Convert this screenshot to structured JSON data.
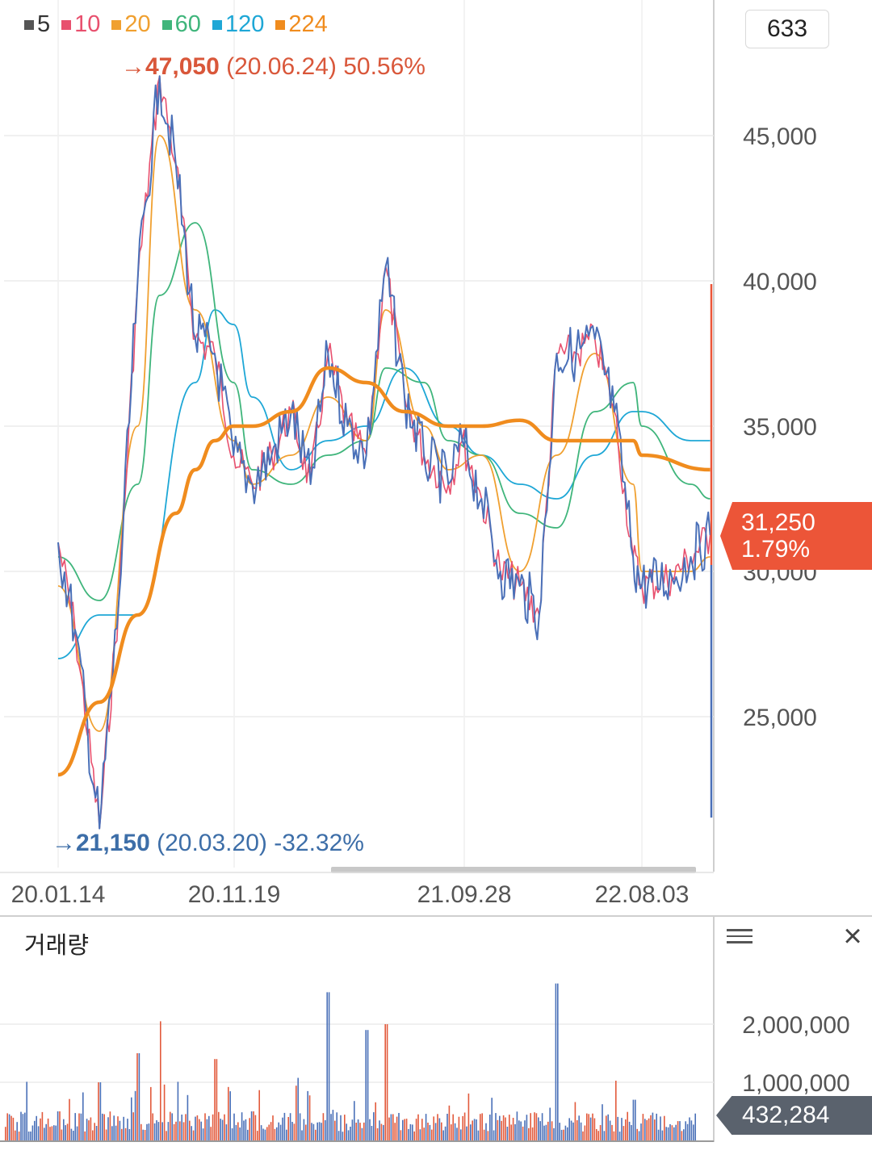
{
  "legend": [
    {
      "label": "5",
      "color": "#555555"
    },
    {
      "label": "10",
      "color": "#e8506e"
    },
    {
      "label": "20",
      "color": "#f0a030"
    },
    {
      "label": "60",
      "color": "#3fb57b"
    },
    {
      "label": "120",
      "color": "#1ea7d6"
    },
    {
      "label": "224",
      "color": "#f08c1e"
    }
  ],
  "count_box": "633",
  "high_marker": {
    "arrow": "→",
    "value": "47,050",
    "date": "(20.06.24)",
    "change": "50.56%"
  },
  "low_marker": {
    "arrow": "→",
    "value": "21,150",
    "date": "(20.03.20)",
    "change": "-32.32%"
  },
  "current_price": {
    "value": "31,250",
    "change": "1.79%",
    "color": "#ec5538"
  },
  "volume_panel": {
    "title": "거래량",
    "current": "432,284"
  },
  "chart_data": [
    {
      "type": "line",
      "title": "",
      "x_ticks": [
        "20.01.14",
        "20.11.19",
        "21.09.28",
        "22.08.03"
      ],
      "y_ticks": [
        25000,
        30000,
        35000,
        40000,
        45000
      ],
      "ylim": [
        19300,
        48000
      ],
      "grid": true,
      "series": [
        {
          "name": "price",
          "color": "#4a70b8",
          "x": [
            "20.01.14",
            "20.02.10",
            "20.03.20",
            "20.04.20",
            "20.05.20",
            "20.06.24",
            "20.07.20",
            "20.08.20",
            "20.09.20",
            "20.10.20",
            "20.11.19",
            "20.12.20",
            "21.01.20",
            "21.02.20",
            "21.03.20",
            "21.04.20",
            "21.05.20",
            "21.06.20",
            "21.07.20",
            "21.08.20",
            "21.09.28",
            "21.10.20",
            "21.11.20",
            "21.12.20",
            "22.01.20",
            "22.02.20",
            "22.03.20",
            "22.04.20",
            "22.05.20",
            "22.06.20",
            "22.07.20",
            "22.08.03",
            "22.09.20",
            "22.10.20",
            "22.11.20"
          ],
          "y": [
            31000,
            28000,
            21150,
            29000,
            40000,
            47050,
            44000,
            38000,
            37500,
            34000,
            33000,
            34000,
            35500,
            33000,
            37500,
            35000,
            34000,
            40500,
            36000,
            34000,
            33000,
            34500,
            32500,
            30000,
            29500,
            28500,
            37500,
            37500,
            38000,
            35500,
            30500,
            29500,
            29800,
            30500,
            31250
          ]
        },
        {
          "name": "5",
          "color": "#555555",
          "x": [],
          "y": []
        },
        {
          "name": "10",
          "color": "#e8506e",
          "x": [],
          "y": []
        },
        {
          "name": "20",
          "color": "#f0a030",
          "x": [
            "20.01.14",
            "20.03.20",
            "20.05.20",
            "20.06.24",
            "20.08.20",
            "20.10.20",
            "20.11.19",
            "21.01.20",
            "21.03.20",
            "21.05.20",
            "21.06.20",
            "21.08.20",
            "21.09.28",
            "21.11.20",
            "22.01.20",
            "22.03.20",
            "22.05.20",
            "22.07.20",
            "22.08.03",
            "22.10.20",
            "22.11.20"
          ],
          "y": [
            29500,
            24500,
            35000,
            45000,
            39000,
            34500,
            33000,
            34000,
            36000,
            34500,
            39000,
            35000,
            33500,
            34000,
            30000,
            34000,
            37500,
            33000,
            30000,
            30000,
            30500
          ]
        },
        {
          "name": "60",
          "color": "#3fb57b",
          "x": [
            "20.01.14",
            "20.03.20",
            "20.05.20",
            "20.06.24",
            "20.08.20",
            "20.10.20",
            "20.11.19",
            "21.01.20",
            "21.03.20",
            "21.05.20",
            "21.06.20",
            "21.08.20",
            "21.09.28",
            "21.11.20",
            "22.01.20",
            "22.03.20",
            "22.05.20",
            "22.07.20",
            "22.08.03",
            "22.10.20",
            "22.11.20"
          ],
          "y": [
            30500,
            29000,
            33000,
            39500,
            42000,
            36500,
            33500,
            33000,
            34000,
            34500,
            37000,
            36500,
            34500,
            34000,
            32000,
            31500,
            35500,
            36500,
            35000,
            33000,
            32500
          ]
        },
        {
          "name": "120",
          "color": "#1ea7d6",
          "x": [
            "20.01.14",
            "20.03.20",
            "20.05.20",
            "20.08.20",
            "20.09.20",
            "20.10.20",
            "20.11.19",
            "21.01.20",
            "21.03.20",
            "21.05.20",
            "21.07.20",
            "21.09.28",
            "21.11.20",
            "22.01.20",
            "22.03.20",
            "22.05.20",
            "22.07.20",
            "22.08.03",
            "22.10.20",
            "22.11.20"
          ],
          "y": [
            27000,
            28500,
            28500,
            36500,
            39000,
            38500,
            36000,
            33500,
            34500,
            35000,
            37000,
            35000,
            34000,
            33000,
            32500,
            34000,
            35500,
            35500,
            34500,
            34500
          ]
        },
        {
          "name": "224",
          "color": "#f08c1e",
          "x": [
            "20.01.14",
            "20.03.20",
            "20.05.20",
            "20.07.20",
            "20.08.20",
            "20.09.20",
            "20.10.20",
            "20.11.19",
            "21.01.20",
            "21.03.20",
            "21.05.20",
            "21.07.20",
            "21.09.28",
            "21.11.20",
            "22.01.20",
            "22.03.20",
            "22.05.20",
            "22.07.20",
            "22.08.03",
            "22.11.20"
          ],
          "y": [
            23000,
            25500,
            28500,
            32000,
            33500,
            34500,
            35000,
            35000,
            35500,
            37000,
            36500,
            35500,
            35000,
            35000,
            35200,
            34500,
            34500,
            34500,
            34000,
            33500
          ]
        }
      ]
    },
    {
      "type": "bar",
      "title": "거래량",
      "y_ticks": [
        1000000,
        2000000
      ],
      "ylim": [
        0,
        2800000
      ],
      "series": [
        {
          "name": "volume",
          "colors": [
            "#e25a3c",
            "#4a70b8"
          ],
          "x": [
            "20.01.14",
            "20.03.20",
            "20.05.20",
            "20.06.24",
            "20.09.20",
            "20.11.19",
            "21.03.20",
            "21.05.20",
            "21.06.20",
            "21.09.28",
            "22.03.20",
            "22.07.20",
            "22.11.20"
          ],
          "values": [
            500000,
            1000000,
            1500000,
            2050000,
            1400000,
            500000,
            2550000,
            1900000,
            2000000,
            600000,
            2700000,
            700000,
            432284
          ]
        }
      ]
    }
  ]
}
